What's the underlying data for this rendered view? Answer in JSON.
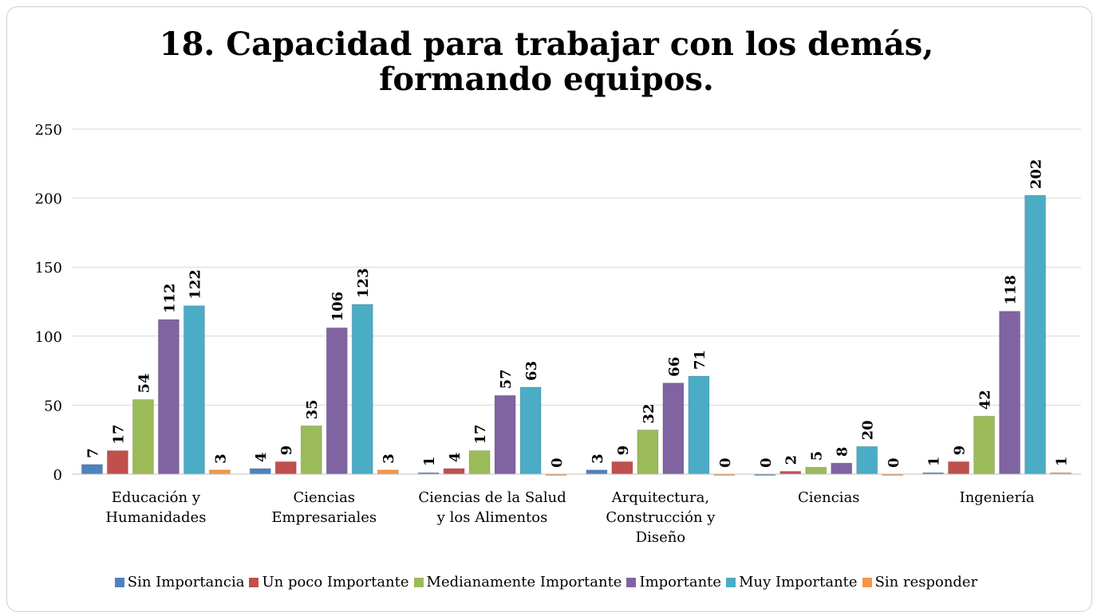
{
  "chart_data": {
    "type": "bar",
    "title": "18. Capacidad para trabajar con los demás, formando equipos.",
    "categories": [
      "Educación y Humanidades",
      "Ciencias Empresariales",
      "Ciencias de la Salud y los Alimentos",
      "Arquitectura, Construcción y Diseño",
      "Ciencias",
      "Ingeniería"
    ],
    "series": [
      {
        "name": "Sin Importancia",
        "color": "#4f81bd",
        "values": [
          7,
          4,
          1,
          3,
          0,
          1
        ]
      },
      {
        "name": "Un poco Importante",
        "color": "#c0504d",
        "values": [
          17,
          9,
          4,
          9,
          2,
          9
        ]
      },
      {
        "name": "Medianamente Importante",
        "color": "#9bbb59",
        "values": [
          54,
          35,
          17,
          32,
          5,
          42
        ]
      },
      {
        "name": "Importante",
        "color": "#8064a2",
        "values": [
          112,
          106,
          57,
          66,
          8,
          118
        ]
      },
      {
        "name": "Muy Importante",
        "color": "#4bacc6",
        "values": [
          122,
          123,
          63,
          71,
          20,
          202
        ]
      },
      {
        "name": "Sin responder",
        "color": "#f79646",
        "values": [
          3,
          3,
          0,
          0,
          0,
          1
        ]
      }
    ],
    "ylim": [
      0,
      250
    ],
    "yticks": [
      0,
      50,
      100,
      150,
      200,
      250
    ],
    "grid": true,
    "legend": "bottom"
  }
}
